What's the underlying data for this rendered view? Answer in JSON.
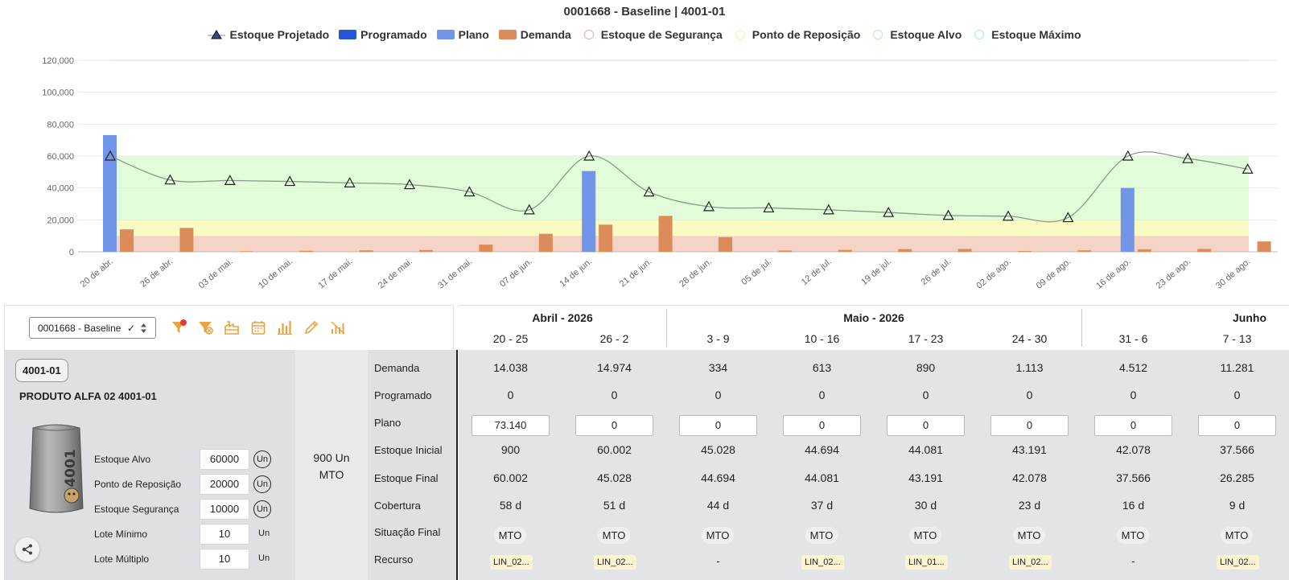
{
  "chart_data": {
    "type": "bar",
    "title": "0001668 - Baseline | 4001-01",
    "legend": [
      {
        "name": "Estoque Projetado",
        "color": "#1a2b50",
        "kind": "triangle"
      },
      {
        "name": "Programado",
        "color": "#2556d9",
        "kind": "bar"
      },
      {
        "name": "Plano",
        "color": "#7195e8",
        "kind": "bar"
      },
      {
        "name": "Demanda",
        "color": "#dc8c5a",
        "kind": "bar"
      },
      {
        "name": "Estoque de Segurança",
        "color": "#f0a8a8",
        "kind": "circle"
      },
      {
        "name": "Ponto de Reposição",
        "color": "#f2f2a8",
        "kind": "circle"
      },
      {
        "name": "Estoque Alvo",
        "color": "#b8ecb0",
        "kind": "circle"
      },
      {
        "name": "Estoque Máximo",
        "color": "#a8e6f0",
        "kind": "circle"
      }
    ],
    "legend_placement": "top-center",
    "categories": [
      "20 de abr.",
      "26 de abr.",
      "03 de mai.",
      "10 de mai.",
      "17 de mai.",
      "24 de mai.",
      "31 de mai.",
      "07 de jun.",
      "14 de jun.",
      "21 de jun.",
      "28 de jun.",
      "05 de jul.",
      "12 de jul.",
      "19 de jul.",
      "26 de jul.",
      "02 de ago.",
      "09 de ago.",
      "16 de ago.",
      "23 de ago.",
      "30 de ago."
    ],
    "ylim": [
      0,
      120000
    ],
    "yticks": [
      0,
      20000,
      40000,
      60000,
      80000,
      100000,
      120000
    ],
    "ytick_labels": [
      "0",
      "20,000",
      "40,000",
      "60,000",
      "80,000",
      "100,000",
      "120,000"
    ],
    "grid": true,
    "series": [
      {
        "name": "Plano",
        "values": [
          73140,
          0,
          0,
          0,
          0,
          0,
          0,
          0,
          50600,
          0,
          0,
          0,
          0,
          0,
          0,
          0,
          0,
          40000,
          0,
          0
        ]
      },
      {
        "name": "Demanda",
        "values": [
          14038,
          14974,
          334,
          613,
          890,
          1113,
          4512,
          11281,
          17000,
          22500,
          9200,
          800,
          1200,
          1700,
          1800,
          500,
          900,
          1500,
          1800,
          6500
        ]
      },
      {
        "name": "Estoque Projetado",
        "values": [
          60002,
          45028,
          44694,
          44081,
          43191,
          42078,
          37566,
          26285,
          60000,
          37500,
          28300,
          27500,
          26300,
          24600,
          22800,
          22300,
          21400,
          60000,
          58400,
          51800
        ]
      }
    ],
    "bands": [
      {
        "name": "Estoque de Segurança",
        "from": 0,
        "to": 10000,
        "color": "#f5d4c6"
      },
      {
        "name": "Ponto de Reposição",
        "from": 10000,
        "to": 20000,
        "color": "#fafac4"
      },
      {
        "name": "Estoque Alvo",
        "from": 20000,
        "to": 60000,
        "color": "#e2fcd9"
      },
      {
        "name": "Estoque Máximo",
        "value": 120000,
        "color": "#bfeaf2"
      }
    ]
  },
  "toolbar": {
    "scenario_value": "0001668 - Baseline",
    "check": "✓",
    "icons": [
      "filter-icon",
      "filter-clear-icon",
      "factory-icon",
      "calendar-icon",
      "bar-chart-icon",
      "pencil-icon",
      "chart-off-icon"
    ],
    "colors": {
      "icon": "#e8a33c",
      "badge": "#e53935"
    }
  },
  "product": {
    "code": "4001-01",
    "name": "PRODUTO ALFA 02 4001-01",
    "image_label": "4001",
    "params": [
      {
        "label": "Estoque Alvo",
        "value": "60000",
        "unit": "Un",
        "unit_circle": true
      },
      {
        "label": "Ponto de Reposição",
        "value": "20000",
        "unit": "Un",
        "unit_circle": true
      },
      {
        "label": "Estoque Segurança",
        "value": "10000",
        "unit": "Un",
        "unit_circle": true
      },
      {
        "label": "Lote Mínimo",
        "value": "10",
        "unit": "Un",
        "unit_circle": false
      },
      {
        "label": "Lote Múltiplo",
        "value": "10",
        "unit": "Un",
        "unit_circle": false
      }
    ],
    "mto_line1": "900 Un",
    "mto_line2": "MTO"
  },
  "grid": {
    "months": [
      {
        "label": "Abril - 2026"
      },
      {
        "label": "Maio - 2026"
      },
      {
        "label": "Junho"
      }
    ],
    "weeks": [
      "20 - 25",
      "26 - 2",
      "3 - 9",
      "10 - 16",
      "17 - 23",
      "24 - 30",
      "31 - 6",
      "7 - 13"
    ],
    "row_labels": [
      "Demanda",
      "Programado",
      "Plano",
      "Estoque Inicial",
      "Estoque Final",
      "Cobertura",
      "Situação Final",
      "Recurso"
    ],
    "rows": {
      "demanda": [
        "14.038",
        "14.974",
        "334",
        "613",
        "890",
        "1.113",
        "4.512",
        "11.281"
      ],
      "programado": [
        "0",
        "0",
        "0",
        "0",
        "0",
        "0",
        "0",
        "0"
      ],
      "plano": [
        "73.140",
        "0",
        "0",
        "0",
        "0",
        "0",
        "0",
        "0"
      ],
      "estoque_inicial": [
        "900",
        "60.002",
        "45.028",
        "44.694",
        "44.081",
        "43.191",
        "42.078",
        "37.566"
      ],
      "estoque_final": [
        "60.002",
        "45.028",
        "44.694",
        "44.081",
        "43.191",
        "42.078",
        "37.566",
        "26.285"
      ],
      "cobertura": [
        "58 d",
        "51 d",
        "44 d",
        "37 d",
        "30 d",
        "23 d",
        "16 d",
        "9 d"
      ],
      "situacao": [
        "MTO",
        "MTO",
        "MTO",
        "MTO",
        "MTO",
        "MTO",
        "MTO",
        "MTO"
      ],
      "recurso": [
        "LIN_02...",
        "LIN_02...",
        "-",
        "LIN_02...",
        "LIN_01...",
        "LIN_02...",
        "-",
        "LIN_02..."
      ]
    }
  }
}
